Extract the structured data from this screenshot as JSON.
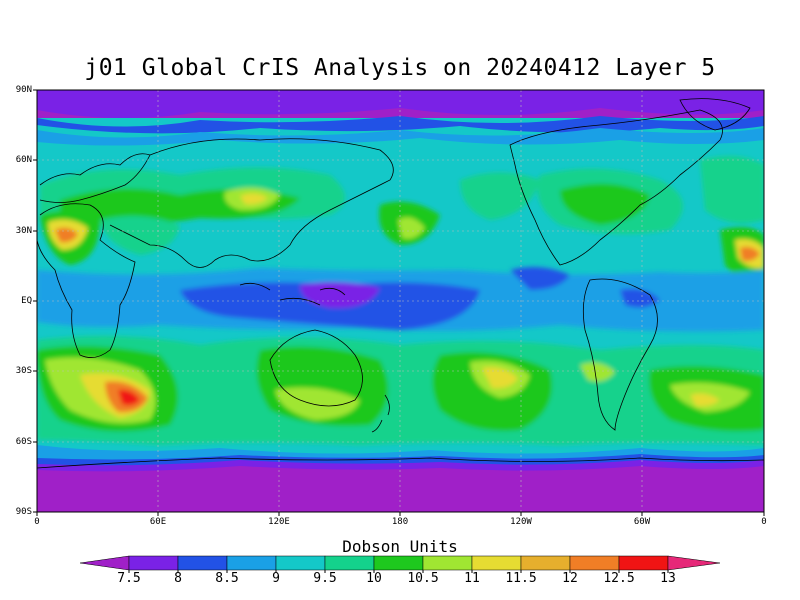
{
  "title": "j01 Global CrIS Analysis on 20240412 Layer 5",
  "y_axis_labels": [
    "90N",
    "60N",
    "30N",
    "EQ",
    "30S",
    "60S",
    "90S"
  ],
  "x_axis_labels": [
    "0",
    "60E",
    "120E",
    "180",
    "120W",
    "60W",
    "0"
  ],
  "colorbar": {
    "title": "Dobson Units",
    "tick_labels": [
      "7.5",
      "8",
      "8.5",
      "9",
      "9.5",
      "10",
      "10.5",
      "11",
      "11.5",
      "12",
      "12.5",
      "13"
    ],
    "colors": [
      "#a020c8",
      "#7a22e6",
      "#2252e6",
      "#1aa0e6",
      "#14c8c8",
      "#14d28c",
      "#1ec81e",
      "#a0e632",
      "#e6dc32",
      "#e6af2d",
      "#f07e26",
      "#f01414",
      "#e62878"
    ]
  },
  "map_layers": {
    "base_level_color": "#14c8c8",
    "polar_color": "#a020c8"
  }
}
